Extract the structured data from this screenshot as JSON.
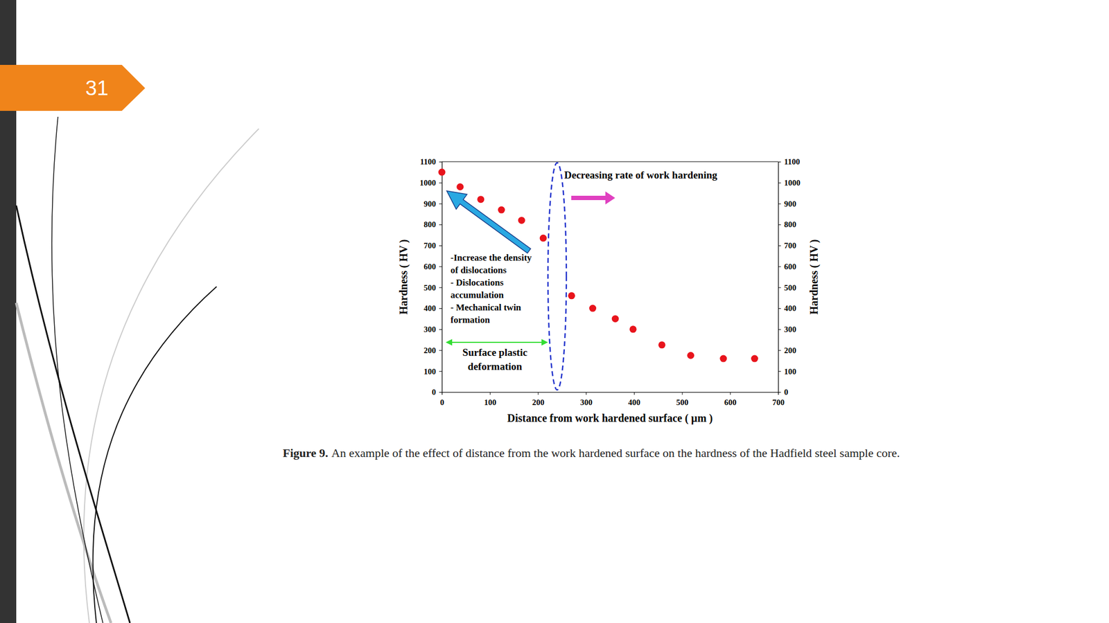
{
  "slide_number": "31",
  "chart_data": {
    "type": "scatter",
    "x": [
      0,
      38,
      81,
      124,
      166,
      211,
      270,
      314,
      361,
      398,
      458,
      518,
      586,
      651
    ],
    "values": [
      1050,
      980,
      920,
      870,
      820,
      735,
      460,
      400,
      350,
      300,
      225,
      175,
      160,
      160
    ],
    "color": "#e8141c",
    "marker": "circle",
    "xlabel": "Distance from work hardened surface ( µm )",
    "ylabel": "Hardness ( HV )",
    "y2label": "Hardness ( HV )",
    "xlim": [
      0,
      700
    ],
    "xticks": [
      0,
      100,
      200,
      300,
      400,
      500,
      600,
      700
    ],
    "ylim": [
      0,
      1100
    ],
    "yticks": [
      0,
      100,
      200,
      300,
      400,
      500,
      600,
      700,
      800,
      900,
      1000,
      1100
    ],
    "y2lim": [
      0,
      1100
    ],
    "y2ticks": [
      0,
      100,
      200,
      300,
      400,
      500,
      600,
      700,
      800,
      900,
      1000,
      1100
    ],
    "grid": false,
    "annotations": [
      {
        "lines": [
          "Decreasing rate of work hardening"
        ]
      },
      {
        "lines": [
          "-Increase the density",
          "of dislocations",
          "- Dislocations",
          "accumulation",
          "- Mechanical twin",
          "formation"
        ]
      },
      {
        "lines": [
          "Surface plastic",
          "deformation"
        ]
      }
    ],
    "caption": {
      "label": "Figure 9.",
      "text": "An example of the effect of distance from the work hardened surface on the hardness of the Hadfield steel sample core."
    }
  }
}
